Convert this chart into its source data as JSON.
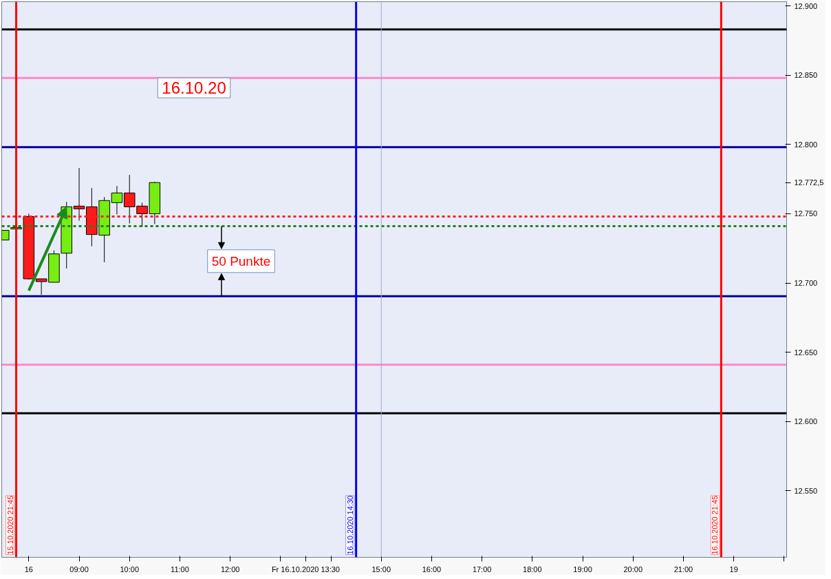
{
  "chart_data": {
    "type": "candlestick",
    "categories": [
      null,
      "15.10.2020 21:45",
      "16",
      null,
      null,
      null,
      "09:00",
      null,
      null,
      null,
      "10:00",
      null,
      null,
      null,
      "11:00",
      null,
      null,
      null,
      "12:00",
      null,
      null,
      null,
      null,
      null,
      "Fr 16.10.2020 13:30",
      null,
      null,
      null,
      "16.10.2020 14:30",
      null,
      "15:00",
      null,
      null,
      null,
      "16:00",
      null,
      null,
      null,
      "17:00",
      null,
      null,
      null,
      "18:00",
      null,
      null,
      null,
      "19:00",
      null,
      null,
      null,
      "20:00",
      null,
      null,
      null,
      "21:00",
      null,
      null,
      "16.10.2020 21:45",
      "19",
      null,
      null,
      null,
      null
    ],
    "ohlc": [
      [
        12731,
        12738,
        12731,
        12738
      ],
      [
        12739,
        12740.5,
        12738.5,
        12740
      ],
      [
        12748,
        12750,
        12702.5,
        12703
      ],
      [
        12703,
        12703,
        12691.5,
        12701
      ],
      [
        12700.5,
        12723.5,
        12700.5,
        12721
      ],
      [
        12721.5,
        12758.5,
        12710.5,
        12755
      ],
      [
        12755.5,
        12783,
        12745,
        12753.5
      ],
      [
        12755,
        12768.5,
        12726.5,
        12735
      ],
      [
        12734.5,
        12762,
        12715,
        12759.5
      ],
      [
        12758,
        12770,
        12749.5,
        12765
      ],
      [
        12765,
        12778,
        12743,
        12755
      ],
      [
        12755.5,
        12758,
        12740.5,
        12750
      ],
      [
        12750,
        12773,
        12742.5,
        12772.5
      ],
      null,
      null,
      null,
      null,
      null,
      null,
      null,
      null,
      null,
      null,
      null,
      null,
      null,
      null,
      null,
      null,
      null,
      null,
      null,
      null,
      null,
      null,
      null,
      null,
      null,
      null,
      null,
      null,
      null,
      null,
      null,
      null,
      null,
      null,
      null,
      null,
      null,
      null,
      null,
      null,
      null,
      null,
      null,
      null,
      null,
      null,
      null,
      null,
      null,
      null
    ],
    "colors": [
      "#77ee11",
      "#77ee11",
      "#ff1a1a",
      "#ff1a1a",
      "#77ee11",
      "#77ee11",
      "#ff1a1a",
      "#ff1a1a",
      "#77ee11",
      "#77ee11",
      "#ff1a1a",
      "#ff1a1a",
      "#77ee11",
      null,
      null,
      null,
      null,
      null,
      null,
      null,
      null,
      null,
      null,
      null,
      null,
      null,
      null,
      null,
      null,
      null,
      null,
      null,
      null,
      null,
      null,
      null,
      null,
      null,
      null,
      null,
      null,
      null,
      null,
      null,
      null,
      null,
      null,
      null,
      null,
      null,
      null,
      null,
      null,
      null,
      null,
      null,
      null,
      null,
      null,
      null,
      null,
      null,
      null
    ],
    "ylim": [
      12502,
      12903
    ],
    "yticks": [
      {
        "value": 12550,
        "label": "12.550"
      },
      {
        "value": 12600,
        "label": "12.600"
      },
      {
        "value": 12650,
        "label": "12.650"
      },
      {
        "value": 12700,
        "label": "12.700"
      },
      {
        "value": 12750,
        "label": "12.750"
      },
      {
        "value": 12772.5,
        "label": "12.772,5"
      },
      {
        "value": 12800,
        "label": "12.800"
      },
      {
        "value": 12850,
        "label": "12.850"
      },
      {
        "value": 12900,
        "label": "12.900"
      }
    ],
    "ref_lines": [
      {
        "axis": "y",
        "value": 12883,
        "color": "#000000"
      },
      {
        "axis": "y",
        "value": 12848,
        "color": "#ff88c8"
      },
      {
        "axis": "y",
        "value": 12798,
        "color": "#0000a0"
      },
      {
        "axis": "y",
        "value": 12748,
        "color": "#ff2020",
        "line_style": "dashed"
      },
      {
        "axis": "y",
        "value": 12741,
        "color": "#208020",
        "line_style": "dashed"
      },
      {
        "axis": "y",
        "value": 12690.5,
        "color": "#0000a0"
      },
      {
        "axis": "y",
        "value": 12641,
        "color": "#ff88c8"
      },
      {
        "axis": "y",
        "value": 12606,
        "color": "#000000"
      },
      {
        "axis": "x",
        "value": "15.10.2020 21:45",
        "color": "#ff0000"
      },
      {
        "axis": "x",
        "value": "16.10.2020 14:30",
        "color": "#0000ff"
      },
      {
        "axis": "x",
        "value": "15:00",
        "color": "#a0a8c8"
      },
      {
        "axis": "x",
        "value": "16.10.2020 21:45",
        "color": "#ff0000"
      }
    ],
    "annotations": [
      "16.10.20",
      "50 Punkte"
    ],
    "grid": false
  }
}
